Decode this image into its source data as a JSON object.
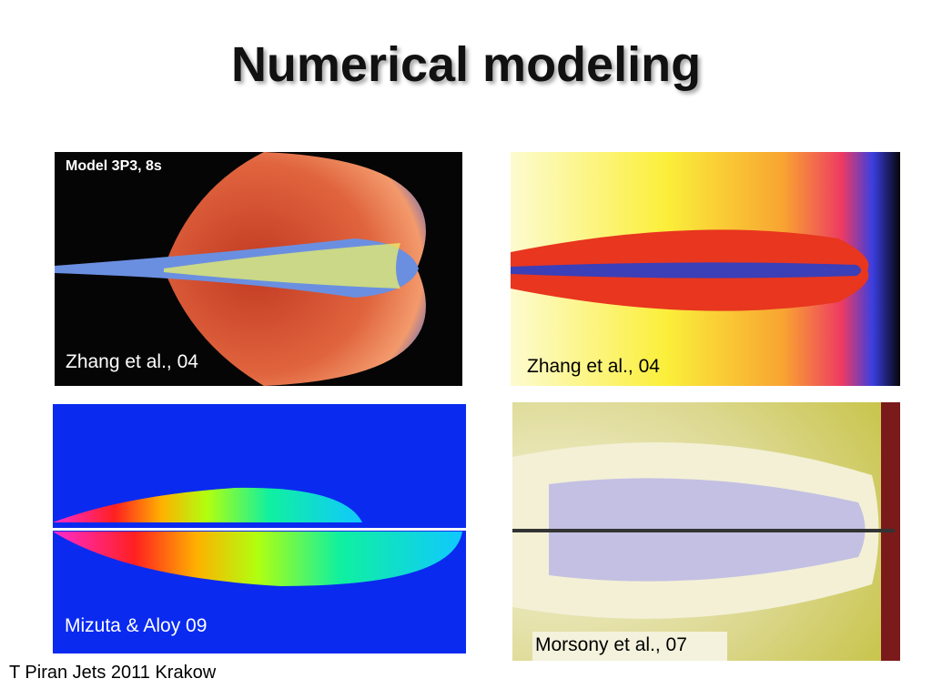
{
  "title": "Numerical modeling",
  "panels": [
    {
      "label": "Model 3P3, 8s",
      "caption": "Zhang et al., 04"
    },
    {
      "caption": "Zhang et al., 04"
    },
    {
      "caption": "Mizuta & Aloy 09"
    },
    {
      "caption": "Morsony et al., 07"
    }
  ],
  "footer": "T Piran Jets 2011 Krakow"
}
